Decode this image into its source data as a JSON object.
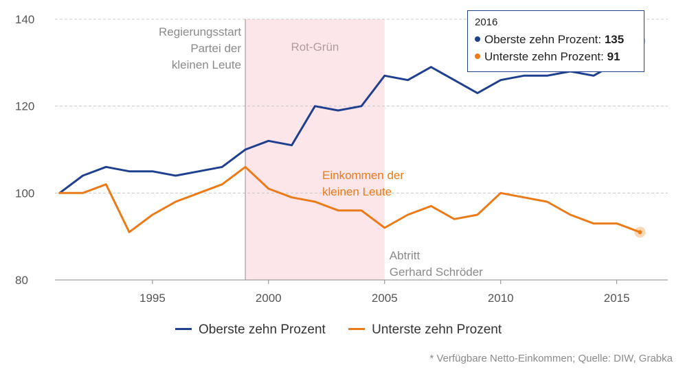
{
  "chart_data": {
    "type": "line",
    "x": [
      1991,
      1992,
      1993,
      1994,
      1995,
      1996,
      1997,
      1998,
      1999,
      2000,
      2001,
      2002,
      2003,
      2004,
      2005,
      2006,
      2007,
      2008,
      2009,
      2010,
      2011,
      2012,
      2013,
      2014,
      2015,
      2016
    ],
    "series": [
      {
        "name": "Oberste zehn Prozent",
        "color": "#1f3f8f",
        "values": [
          100,
          104,
          106,
          105,
          105,
          104,
          105,
          106,
          110,
          112,
          111,
          120,
          119,
          120,
          127,
          126,
          129,
          126,
          123,
          126,
          127,
          127,
          128,
          127,
          130,
          135
        ]
      },
      {
        "name": "Unterste zehn Prozent",
        "color": "#ea7b18",
        "values": [
          100,
          100,
          102,
          91,
          95,
          98,
          100,
          102,
          106,
          101,
          99,
          98,
          96,
          96,
          92,
          95,
          97,
          94,
          95,
          100,
          99,
          98,
          95,
          93,
          93,
          91
        ]
      }
    ],
    "xlim": [
      1990.8,
      2017.2
    ],
    "ylim": [
      80,
      140
    ],
    "y_ticks": [
      80,
      100,
      120,
      140
    ],
    "x_ticks": [
      1995,
      2000,
      2005,
      2010,
      2015
    ],
    "grid": true,
    "shaded_region": {
      "label": "Rot-Grün",
      "from": 1999,
      "to": 2005,
      "color": "#fde6ea"
    },
    "annotations": [
      {
        "name": "regierungsstart",
        "lines": [
          "Regierungsstart",
          "Partei der",
          "kleinen Leute"
        ],
        "x": 1999
      },
      {
        "name": "einkommen",
        "lines": [
          "Einkommen der",
          "kleinen Leute"
        ]
      },
      {
        "name": "abtritt",
        "lines": [
          "Abtritt",
          "Gerhard Schröder"
        ],
        "x": 2005
      }
    ],
    "highlight_year": 2016
  },
  "tooltip": {
    "year": "2016",
    "top_label": "Oberste zehn Prozent:",
    "top_value": "135",
    "bottom_label": "Unterste zehn Prozent:",
    "bottom_value": "91"
  },
  "legend": {
    "top": "Oberste zehn Prozent",
    "bottom": "Unterste zehn Prozent"
  },
  "source": "* Verfügbare Netto-Einkommen; Quelle: DIW, Grabka",
  "colors": {
    "top": "#1f3f8f",
    "bottom": "#ea7b18",
    "shade": "#fde6ea",
    "grid": "#c8c8c8",
    "annotation_grey": "#8a8a8a",
    "shade_label": "#b39a9f"
  }
}
